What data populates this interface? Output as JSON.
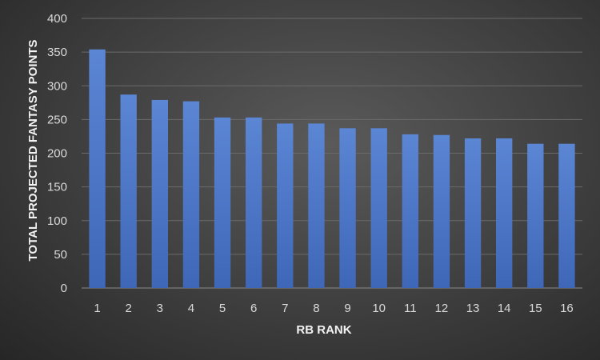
{
  "chart_data": {
    "type": "bar",
    "title": "",
    "xlabel": "RB RANK",
    "ylabel": "TOTAL PROJECTED FANTASY POINTS",
    "categories": [
      "1",
      "2",
      "3",
      "4",
      "5",
      "6",
      "7",
      "8",
      "9",
      "10",
      "11",
      "12",
      "13",
      "14",
      "15",
      "16"
    ],
    "values": [
      354,
      287,
      279,
      277,
      253,
      253,
      244,
      244,
      237,
      237,
      228,
      227,
      222,
      222,
      214,
      214
    ],
    "ylim": [
      0,
      400
    ],
    "yticks": [
      0,
      50,
      100,
      150,
      200,
      250,
      300,
      350,
      400
    ],
    "grid": true,
    "legend": "none",
    "colors": {
      "bar": "#4472C4",
      "bar_light": "#5b86d4",
      "background": "#404040",
      "text": "#d9d9d9"
    }
  }
}
